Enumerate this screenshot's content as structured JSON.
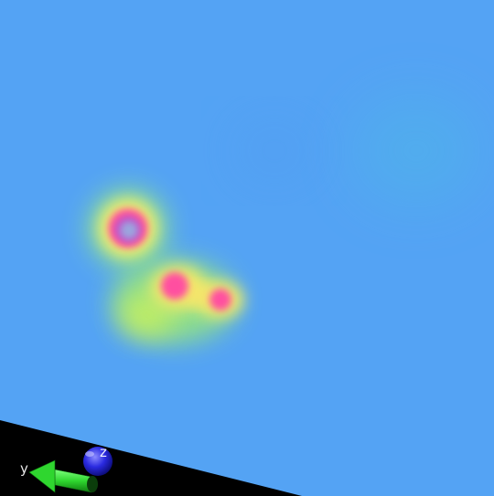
{
  "scene": {
    "type": "3d-density-heatmap-viewer",
    "background_color": "#000000",
    "plane_color": "#54a3f4",
    "colormap": [
      "#54a3f4",
      "#7ef08a",
      "#f6ef6a",
      "#ff5a9a",
      "#9ca3e0"
    ]
  },
  "axes_gizmo": {
    "y_label": "y",
    "z_label": "z",
    "y_axis_color": "#2fd62f",
    "z_axis_color": "#2222dd"
  },
  "features": [
    {
      "name": "ring-peak",
      "intensity": 1.0,
      "shape": "ring"
    },
    {
      "name": "peak-left",
      "intensity": 0.85,
      "shape": "blob"
    },
    {
      "name": "peak-right",
      "intensity": 0.8,
      "shape": "blob"
    },
    {
      "name": "faint-hotspot",
      "intensity": 0.08,
      "shape": "blob"
    }
  ]
}
